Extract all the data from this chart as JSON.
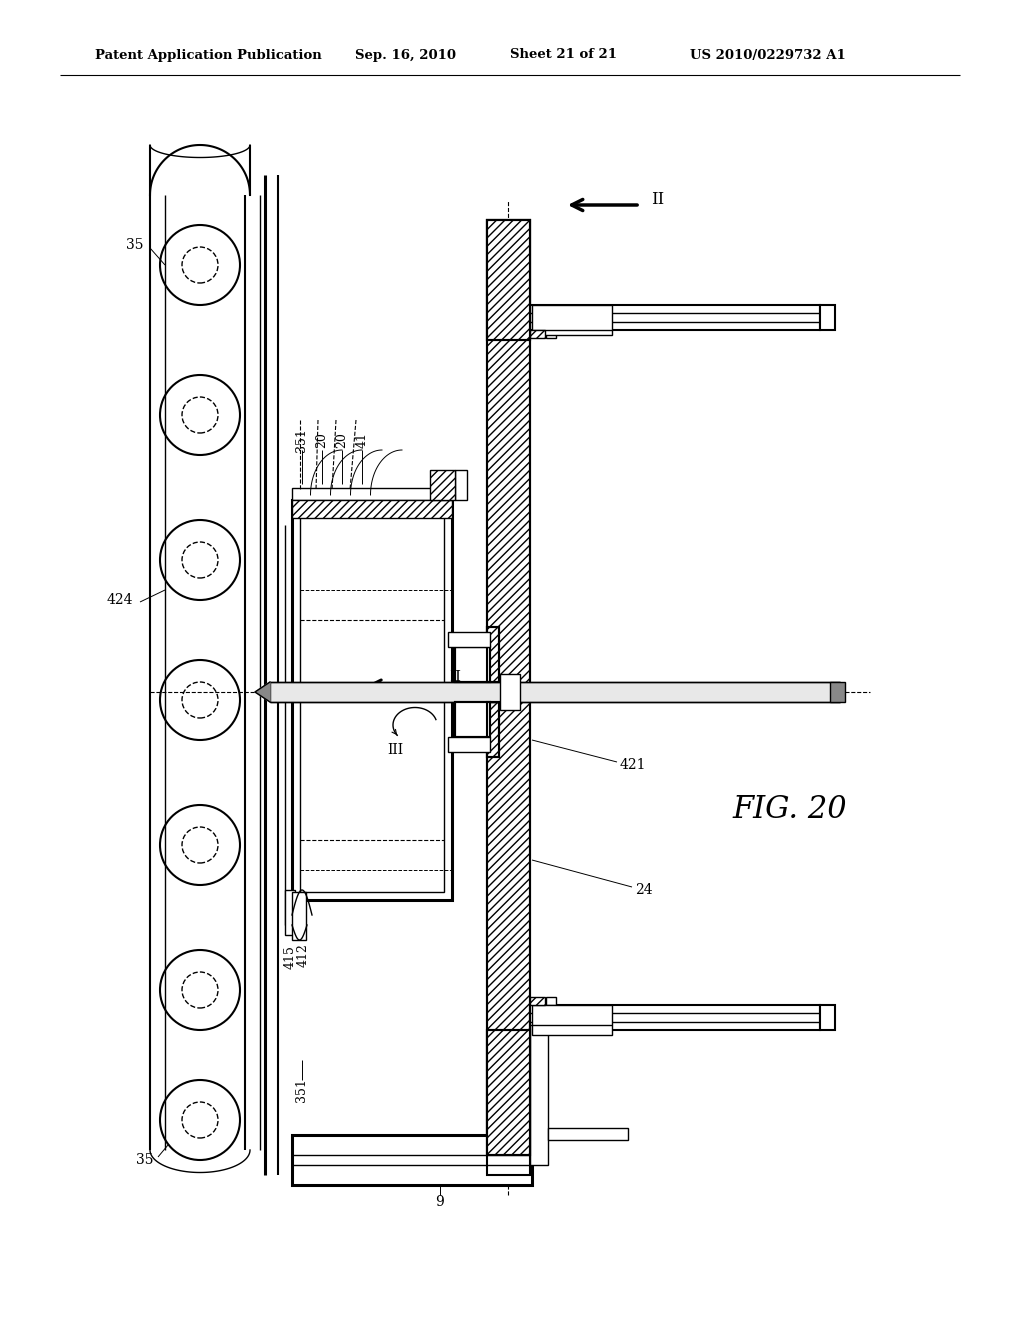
{
  "bg_color": "#ffffff",
  "header_text": "Patent Application Publication",
  "header_date": "Sep. 16, 2010",
  "header_sheet": "Sheet 21 of 21",
  "header_patent": "US 2010/0229732 A1",
  "fig_label": "FIG. 20"
}
